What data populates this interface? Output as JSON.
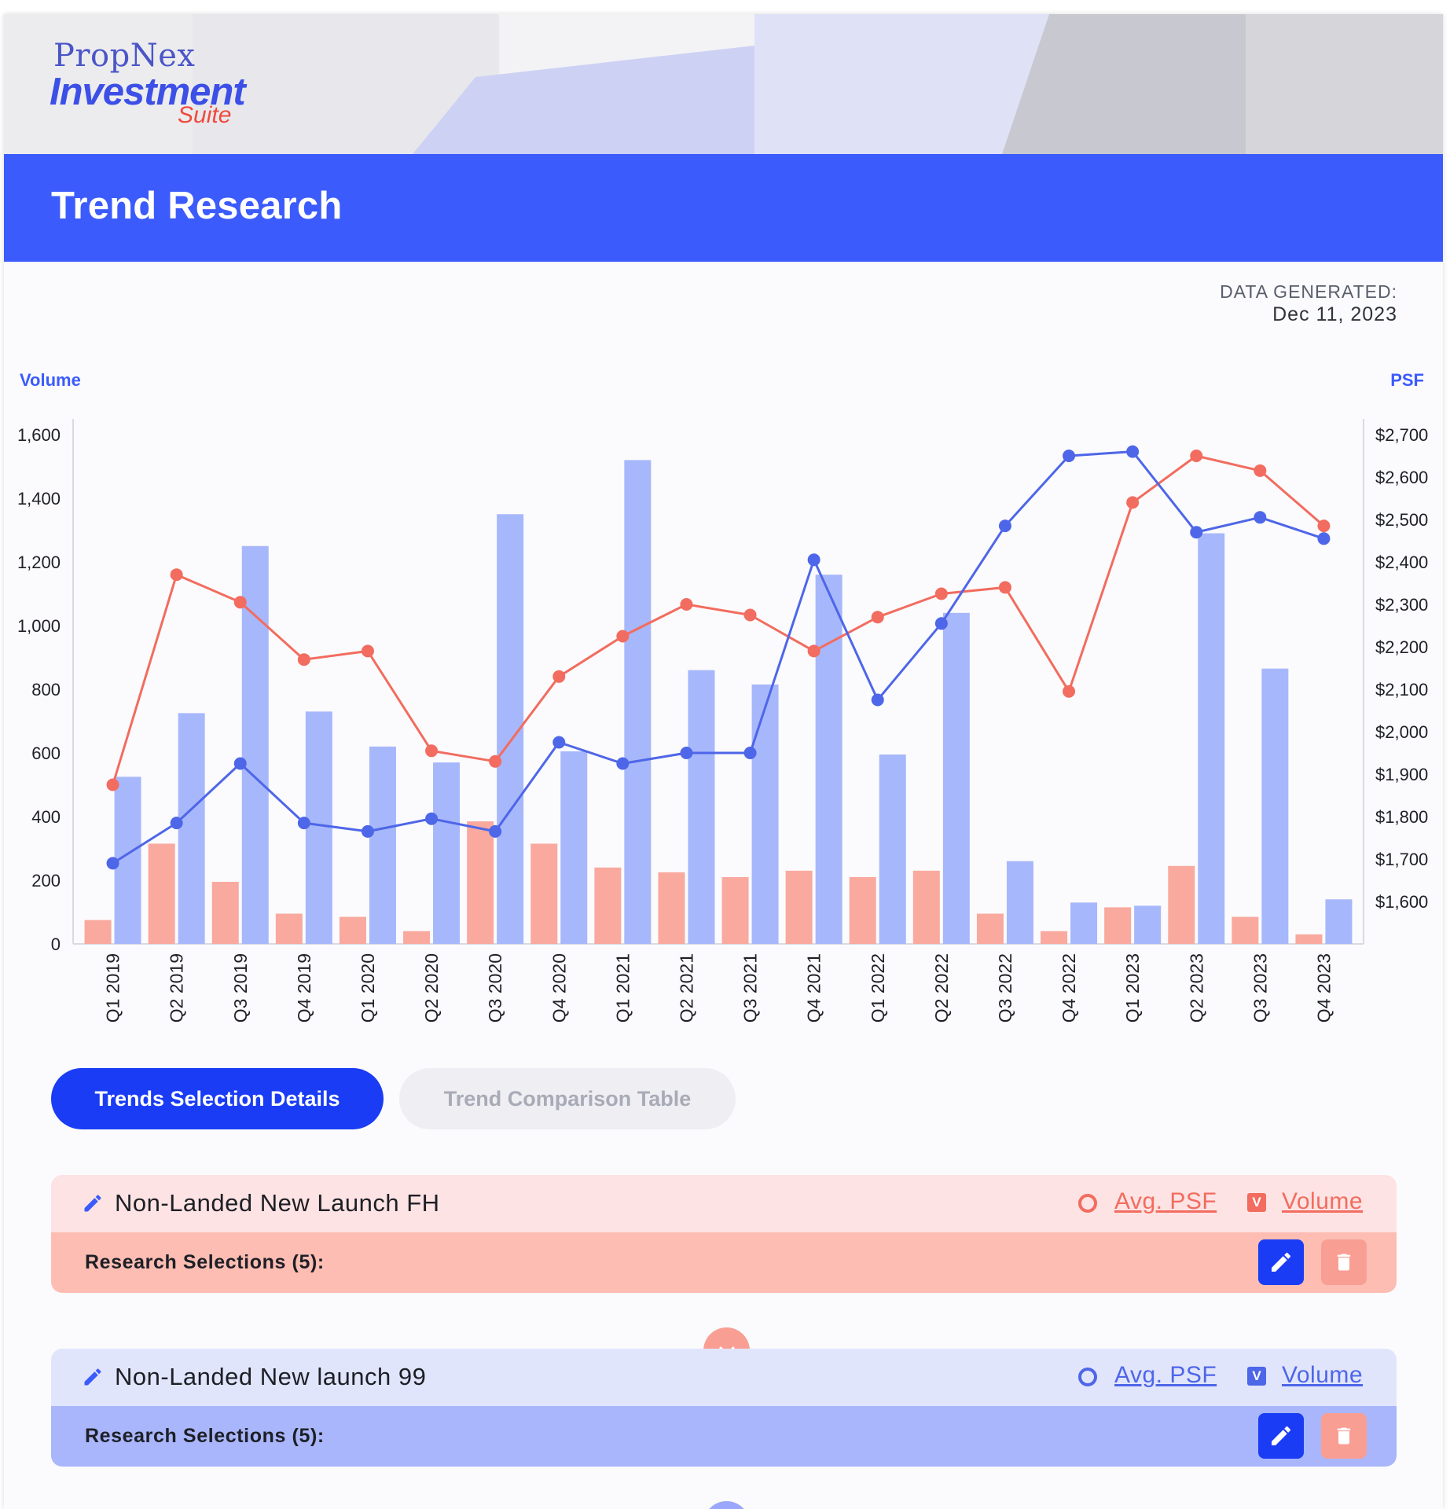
{
  "brand": {
    "line1": "PropNex",
    "line2": "Investment",
    "line3": "Suite"
  },
  "page": {
    "title": "Trend Research"
  },
  "generated": {
    "label": "DATA GENERATED:",
    "date": "Dec 11, 2023"
  },
  "chart_data": {
    "type": "bar",
    "ylabel_left": "Volume",
    "ylabel_right": "PSF",
    "ylim_left": [
      0,
      1600
    ],
    "ylim_right": [
      1500,
      2700
    ],
    "yticks_left": [
      "0",
      "200",
      "400",
      "600",
      "800",
      "1,000",
      "1,200",
      "1,400",
      "1,600"
    ],
    "yticks_right": [
      "$1,600",
      "$1,700",
      "$1,800",
      "$1,900",
      "$2,000",
      "$2,100",
      "$2,200",
      "$2,300",
      "$2,400",
      "$2,500",
      "$2,600",
      "$2,700"
    ],
    "categories": [
      "Q1 2019",
      "Q2 2019",
      "Q3 2019",
      "Q4 2019",
      "Q1 2020",
      "Q2 2020",
      "Q3 2020",
      "Q4 2020",
      "Q1 2021",
      "Q2 2021",
      "Q3 2021",
      "Q4 2021",
      "Q1 2022",
      "Q2 2022",
      "Q3 2022",
      "Q4 2022",
      "Q1 2023",
      "Q2 2023",
      "Q3 2023",
      "Q4 2023"
    ],
    "grid": false,
    "series": [
      {
        "name": "Non-Landed New Launch FH",
        "kind": "bar",
        "axis": "left",
        "color": "#f9a99e",
        "values": [
          75,
          315,
          195,
          95,
          85,
          40,
          385,
          315,
          240,
          225,
          210,
          230,
          210,
          230,
          95,
          40,
          115,
          245,
          85,
          30
        ]
      },
      {
        "name": "Non-Landed New launch 99",
        "kind": "bar",
        "axis": "left",
        "color": "#a7b7fb",
        "values": [
          525,
          725,
          1250,
          730,
          620,
          570,
          1350,
          605,
          1520,
          860,
          815,
          1160,
          595,
          1040,
          260,
          130,
          120,
          1290,
          865,
          140
        ]
      },
      {
        "name": "Non-Landed New Launch FH",
        "kind": "line",
        "axis": "right",
        "color": "#f26c5f",
        "values": [
          1875,
          2370,
          2305,
          2170,
          2190,
          1955,
          1930,
          2130,
          2225,
          2300,
          2275,
          2190,
          2270,
          2325,
          2340,
          2095,
          2540,
          2650,
          2615,
          2485
        ]
      },
      {
        "name": "Non-Landed New launch 99",
        "kind": "line",
        "axis": "right",
        "color": "#4e66e8",
        "values": [
          1690,
          1785,
          1925,
          1785,
          1765,
          1795,
          1765,
          1975,
          1925,
          1950,
          1950,
          2405,
          2075,
          2255,
          2485,
          2650,
          2660,
          2470,
          2505,
          2455
        ]
      }
    ]
  },
  "tabs": {
    "details": "Trends Selection Details",
    "comparison": "Trend Comparison Table"
  },
  "cards": [
    {
      "title": "Non-Landed New Launch FH",
      "psf_label": "Avg. PSF",
      "volume_label": "Volume",
      "v_badge": "V",
      "selections": "Research Selections (5):",
      "accent": "#f26c5f"
    },
    {
      "title": "Non-Landed New launch 99",
      "psf_label": "Avg. PSF",
      "volume_label": "Volume",
      "v_badge": "V",
      "selections": "Research Selections (5):",
      "accent": "#4e66e8"
    }
  ]
}
